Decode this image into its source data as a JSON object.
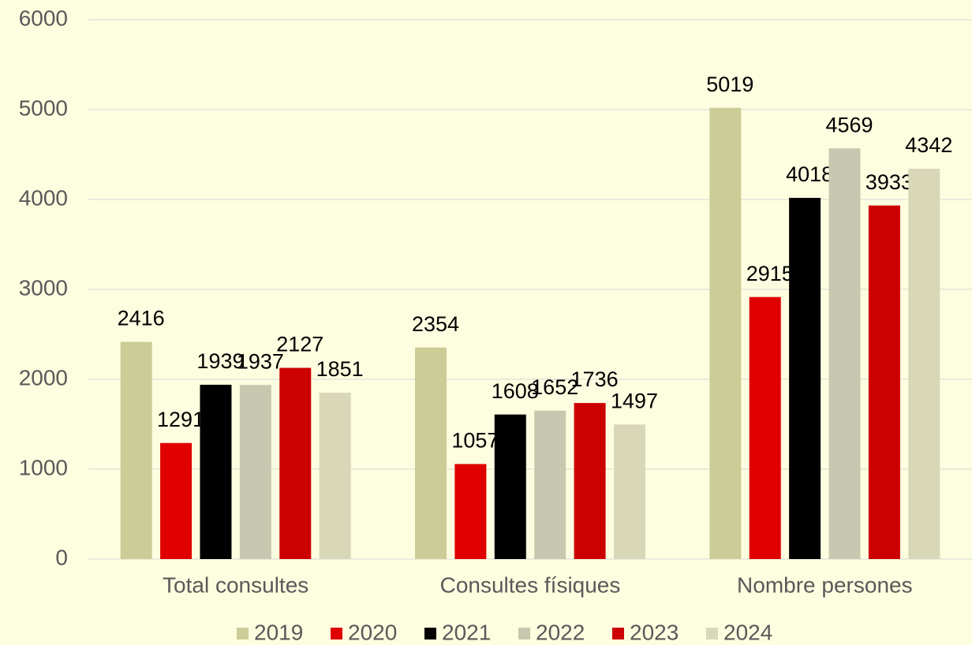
{
  "chart_data": {
    "type": "bar",
    "categories": [
      "Total consultes",
      "Consultes físiques",
      "Nombre persones"
    ],
    "series": [
      {
        "name": "2019",
        "color": "#cccc96",
        "values": [
          2416,
          2354,
          5019
        ]
      },
      {
        "name": "2020",
        "color": "#e00000",
        "values": [
          1291,
          1057,
          2915
        ]
      },
      {
        "name": "2021",
        "color": "#000000",
        "values": [
          1939,
          1608,
          4018
        ]
      },
      {
        "name": "2022",
        "color": "#c8c8b0",
        "values": [
          1937,
          1652,
          4569
        ]
      },
      {
        "name": "2023",
        "color": "#cc0000",
        "values": [
          2127,
          1736,
          3933
        ]
      },
      {
        "name": "2024",
        "color": "#d8d8b8",
        "values": [
          1851,
          1497,
          4342
        ]
      }
    ],
    "ylim": [
      0,
      6000
    ],
    "yticks": [
      0,
      1000,
      2000,
      3000,
      4000,
      5000,
      6000
    ],
    "grid": true,
    "legend": "bottom"
  }
}
